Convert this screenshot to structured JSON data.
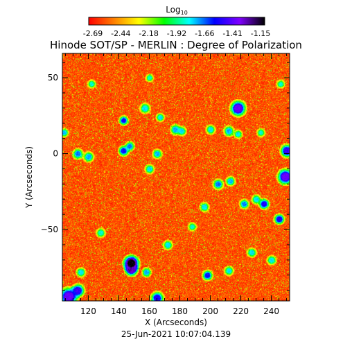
{
  "chart_data": {
    "type": "heatmap",
    "title": "Hinode SOT/SP - MERLIN : Degree of Polarization",
    "xlabel": "X (Arcseconds)",
    "ylabel": "Y (Arcseconds)",
    "footer": "25-Jun-2021 10:07:04.139",
    "colorbar": {
      "label_base": "Log",
      "label_sub": "10",
      "ticks": [
        "-2.69",
        "-2.44",
        "-2.18",
        "-1.92",
        "-1.66",
        "-1.41",
        "-1.15"
      ],
      "range": [
        -2.69,
        -1.15
      ],
      "colors": [
        "#ff0000",
        "#ff7f00",
        "#ffff00",
        "#00ff00",
        "#00ffff",
        "#0000ff",
        "#7f00ff",
        "#000000"
      ]
    },
    "xlim": [
      103,
      252
    ],
    "ylim": [
      -97,
      66
    ],
    "xticks": [
      120,
      140,
      160,
      180,
      200,
      220,
      240
    ],
    "yticks": [
      50,
      0,
      -50
    ],
    "grid": false,
    "background_level": -2.55,
    "features": [
      {
        "x": 148,
        "y": -72,
        "r": 3.0,
        "v": -1.15
      },
      {
        "x": 148,
        "y": -76,
        "r": 2.5,
        "v": -1.3
      },
      {
        "x": 107,
        "y": -94,
        "r": 3.5,
        "v": -1.4
      },
      {
        "x": 113,
        "y": -90,
        "r": 2.5,
        "v": -1.5
      },
      {
        "x": 218,
        "y": 30,
        "r": 3.0,
        "v": -1.4
      },
      {
        "x": 249,
        "y": -15,
        "r": 3.0,
        "v": -1.4
      },
      {
        "x": 250,
        "y": 2,
        "r": 2.5,
        "v": -1.5
      },
      {
        "x": 245,
        "y": -43,
        "r": 2.0,
        "v": -1.55
      },
      {
        "x": 165,
        "y": -95,
        "r": 2.5,
        "v": -1.55
      },
      {
        "x": 198,
        "y": -80,
        "r": 2.0,
        "v": -1.6
      },
      {
        "x": 235,
        "y": -33,
        "r": 2.0,
        "v": -1.55
      },
      {
        "x": 113,
        "y": 0,
        "r": 2.0,
        "v": -1.7
      },
      {
        "x": 120,
        "y": -2,
        "r": 2.0,
        "v": -1.75
      },
      {
        "x": 143,
        "y": 2,
        "r": 2.0,
        "v": -1.6
      },
      {
        "x": 147,
        "y": 5,
        "r": 1.8,
        "v": -1.7
      },
      {
        "x": 143,
        "y": 22,
        "r": 1.8,
        "v": -1.6
      },
      {
        "x": 157,
        "y": 30,
        "r": 2.0,
        "v": -1.8
      },
      {
        "x": 165,
        "y": 0,
        "r": 1.8,
        "v": -1.75
      },
      {
        "x": 160,
        "y": -10,
        "r": 1.8,
        "v": -1.8
      },
      {
        "x": 177,
        "y": 16,
        "r": 2.0,
        "v": -1.75
      },
      {
        "x": 181,
        "y": 15,
        "r": 1.8,
        "v": -1.8
      },
      {
        "x": 200,
        "y": 16,
        "r": 1.8,
        "v": -1.8
      },
      {
        "x": 212,
        "y": 15,
        "r": 2.0,
        "v": -1.75
      },
      {
        "x": 218,
        "y": 13,
        "r": 1.6,
        "v": -1.8
      },
      {
        "x": 205,
        "y": -20,
        "r": 2.0,
        "v": -1.7
      },
      {
        "x": 213,
        "y": -18,
        "r": 1.8,
        "v": -1.75
      },
      {
        "x": 196,
        "y": -35,
        "r": 1.8,
        "v": -1.8
      },
      {
        "x": 222,
        "y": -33,
        "r": 1.8,
        "v": -1.7
      },
      {
        "x": 230,
        "y": -30,
        "r": 1.8,
        "v": -1.8
      },
      {
        "x": 227,
        "y": -65,
        "r": 1.8,
        "v": -1.8
      },
      {
        "x": 240,
        "y": -70,
        "r": 1.8,
        "v": -1.8
      },
      {
        "x": 212,
        "y": -77,
        "r": 1.8,
        "v": -1.8
      },
      {
        "x": 158,
        "y": -78,
        "r": 1.8,
        "v": -1.75
      },
      {
        "x": 172,
        "y": -60,
        "r": 1.8,
        "v": -1.8
      },
      {
        "x": 128,
        "y": -52,
        "r": 1.8,
        "v": -1.85
      },
      {
        "x": 115,
        "y": -78,
        "r": 1.8,
        "v": -1.8
      },
      {
        "x": 122,
        "y": 46,
        "r": 1.6,
        "v": -1.85
      },
      {
        "x": 160,
        "y": 50,
        "r": 1.5,
        "v": -1.85
      },
      {
        "x": 167,
        "y": 24,
        "r": 1.6,
        "v": -1.8
      },
      {
        "x": 246,
        "y": 46,
        "r": 1.6,
        "v": -1.85
      },
      {
        "x": 233,
        "y": 14,
        "r": 1.6,
        "v": -1.85
      },
      {
        "x": 188,
        "y": -48,
        "r": 1.6,
        "v": -1.85
      },
      {
        "x": 104,
        "y": 14,
        "r": 1.6,
        "v": -1.75
      }
    ]
  }
}
